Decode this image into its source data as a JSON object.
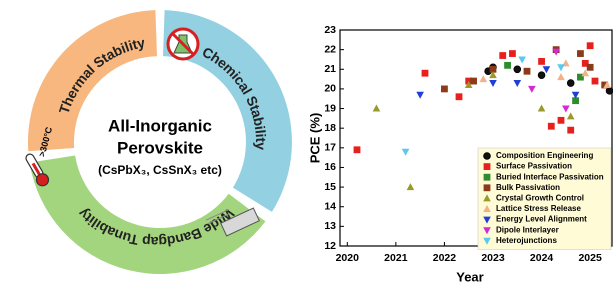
{
  "diagram": {
    "center_title": [
      "All-Inorganic",
      "Perovskite"
    ],
    "center_subtitle": "(CsPbX₃, CsSnX₃ etc)",
    "segments": [
      {
        "label": "Thermal Stability",
        "color": "#f8b77f"
      },
      {
        "label": "Chemical Stability",
        "color": "#92d0e2"
      },
      {
        "label": "Wide Bandgap Tunability",
        "color": "#a3d57e"
      }
    ],
    "temperature_note": ">300°C"
  },
  "chart_data": {
    "type": "scatter",
    "x_label": "Year",
    "y_label": "PCE (%)",
    "xlim": [
      2019.85,
      2025.45
    ],
    "xticks": [
      2020,
      2021,
      2022,
      2023,
      2024,
      2025
    ],
    "ylim": [
      12,
      23
    ],
    "yticks": [
      12,
      13,
      14,
      15,
      16,
      17,
      18,
      19,
      20,
      21,
      22,
      23
    ],
    "legend": "lower-right",
    "series": [
      {
        "name": "Composition Engineering",
        "color": "#111111",
        "marker": "circle",
        "x": [
          2022.9,
          2023.0,
          2023.5,
          2024.0,
          2024.6,
          2025.4
        ],
        "values": [
          20.9,
          21.1,
          21.0,
          20.7,
          20.3,
          19.9
        ]
      },
      {
        "name": "Surface Passivation",
        "color": "#e8201c",
        "marker": "square",
        "x": [
          2020.2,
          2021.6,
          2022.3,
          2022.5,
          2023.2,
          2023.4,
          2024.0,
          2024.2,
          2024.4,
          2024.6,
          2024.9,
          2025.0,
          2025.1
        ],
        "values": [
          16.9,
          20.8,
          19.6,
          20.4,
          21.7,
          21.8,
          21.4,
          18.1,
          18.4,
          17.9,
          21.3,
          22.2,
          20.4
        ]
      },
      {
        "name": "Buried Interface Passivation",
        "color": "#2e8b2e",
        "marker": "square",
        "x": [
          2023.3,
          2024.7,
          2024.8
        ],
        "values": [
          21.2,
          19.4,
          20.6
        ]
      },
      {
        "name": "Bulk Passivation",
        "color": "#8b3a1a",
        "marker": "square",
        "x": [
          2022.0,
          2022.6,
          2023.0,
          2023.7,
          2024.3,
          2024.8,
          2025.0,
          2025.3
        ],
        "values": [
          20.0,
          20.4,
          21.0,
          20.9,
          22.0,
          21.8,
          21.1,
          20.2
        ]
      },
      {
        "name": "Crystal Growth Control",
        "color": "#9a9a2a",
        "marker": "triangle-up",
        "x": [
          2020.6,
          2021.3,
          2022.5,
          2023.0,
          2024.0,
          2024.6
        ],
        "values": [
          19.0,
          15.0,
          20.2,
          20.7,
          19.0,
          18.6
        ]
      },
      {
        "name": "Lattice Stress Release",
        "color": "#f4b183",
        "marker": "triangle-up",
        "x": [
          2022.8,
          2024.4,
          2024.5,
          2024.9,
          2025.35
        ],
        "values": [
          20.5,
          20.6,
          21.3,
          20.8,
          20.2
        ]
      },
      {
        "name": "Energy Level Alignment",
        "color": "#1f3fd6",
        "marker": "triangle-down",
        "x": [
          2021.5,
          2023.0,
          2023.5,
          2024.1,
          2024.7
        ],
        "values": [
          19.7,
          20.3,
          20.3,
          21.0,
          19.7
        ]
      },
      {
        "name": "Dipole Interlayer",
        "color": "#d42ad4",
        "marker": "triangle-down",
        "x": [
          2023.8,
          2024.3,
          2024.5
        ],
        "values": [
          20.0,
          21.9,
          19.0
        ]
      },
      {
        "name": "Heterojunctions",
        "color": "#5bc8f0",
        "marker": "triangle-down",
        "x": [
          2021.2,
          2023.6,
          2024.4
        ],
        "values": [
          16.8,
          21.5,
          21.1
        ]
      }
    ]
  }
}
